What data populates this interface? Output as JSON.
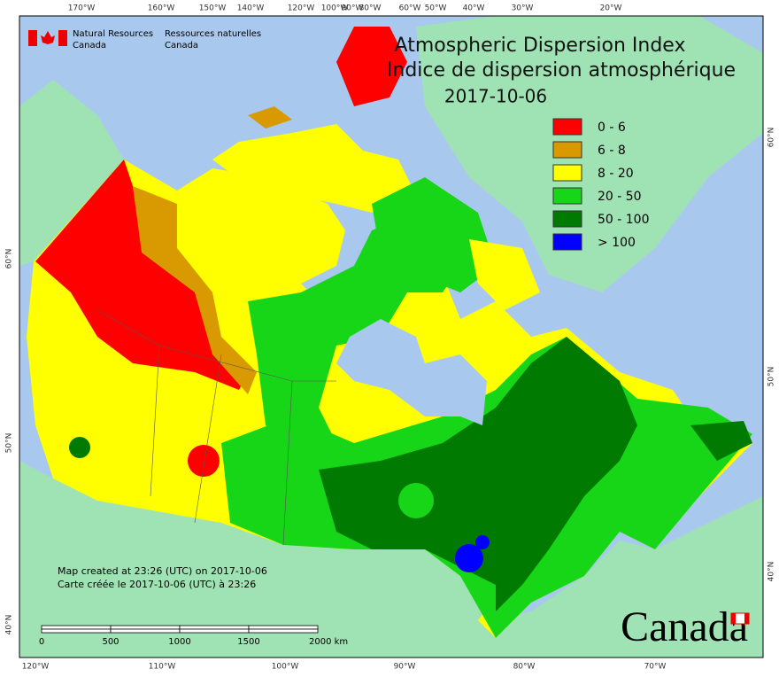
{
  "map": {
    "title": "Atmospheric Dispersion Index",
    "subtitle": "Indice de dispersion atmosphérique",
    "date": "2017-10-06",
    "agency": {
      "en_line1": "Natural Resources",
      "en_line2": "Canada",
      "fr_line1": "Ressources naturelles",
      "fr_line2": "Canada"
    },
    "legend": [
      {
        "label": "0 - 6",
        "color": "#ff0000"
      },
      {
        "label": "6 - 8",
        "color": "#d89a00"
      },
      {
        "label": "8 - 20",
        "color": "#ffff00"
      },
      {
        "label": "20 - 50",
        "color": "#17d617"
      },
      {
        "label": "50 - 100",
        "color": "#007a00"
      },
      {
        "label": "> 100",
        "color": "#0000ff"
      }
    ],
    "top_labels": [
      "170°W",
      "160°W",
      "150°W",
      "140°W",
      "120°W",
      "100°W",
      "90°W",
      "80°W",
      "60°W",
      "50°W",
      "40°W",
      "30°W",
      "20°W"
    ],
    "bottom_labels": [
      "120°W",
      "110°W",
      "100°W",
      "90°W",
      "80°W",
      "70°W"
    ],
    "left_labels": [
      "60°N",
      "50°N",
      "40°N"
    ],
    "right_labels": [
      "60°N",
      "50°N",
      "40°N"
    ],
    "created_en": "Map created at 23:26 (UTC) on 2017-10-06",
    "created_fr": "Carte créée le 2017-10-06 (UTC) à 23:26",
    "scale_labels": [
      "0",
      "500",
      "1000",
      "1500",
      "2000  km"
    ],
    "wordmark": "Canada"
  }
}
